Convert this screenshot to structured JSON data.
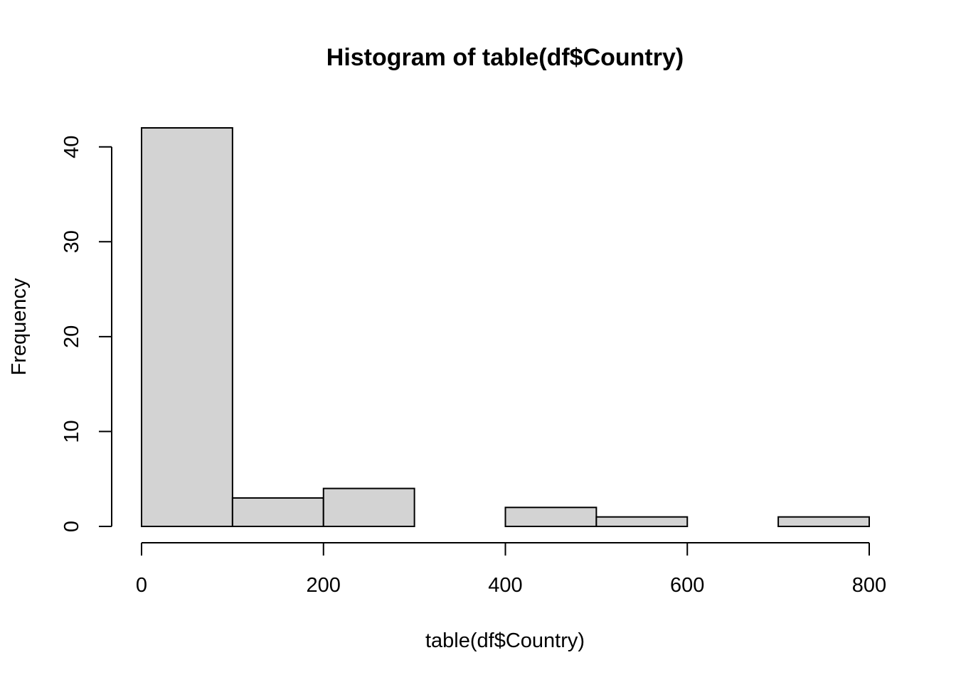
{
  "chart_data": {
    "type": "bar",
    "title": "Histogram of table(df$Country)",
    "xlabel": "table(df$Country)",
    "ylabel": "Frequency",
    "bins": [
      {
        "start": 0,
        "end": 100,
        "count": 42
      },
      {
        "start": 100,
        "end": 200,
        "count": 3
      },
      {
        "start": 200,
        "end": 300,
        "count": 4
      },
      {
        "start": 300,
        "end": 400,
        "count": 0
      },
      {
        "start": 400,
        "end": 500,
        "count": 2
      },
      {
        "start": 500,
        "end": 600,
        "count": 1
      },
      {
        "start": 600,
        "end": 700,
        "count": 0
      },
      {
        "start": 700,
        "end": 800,
        "count": 1
      }
    ],
    "xlim": [
      0,
      800
    ],
    "ylim": [
      0,
      42
    ],
    "xticks": [
      0,
      200,
      400,
      600,
      800
    ],
    "xtick_labels": [
      "0",
      "200",
      "400",
      "600",
      "800"
    ],
    "yticks": [
      0,
      10,
      20,
      30,
      40
    ],
    "ytick_labels": [
      "0",
      "10",
      "20",
      "30",
      "40"
    ],
    "bar_fill": "#d3d3d3",
    "bar_stroke": "#000000",
    "grid": false,
    "legend": "none"
  }
}
